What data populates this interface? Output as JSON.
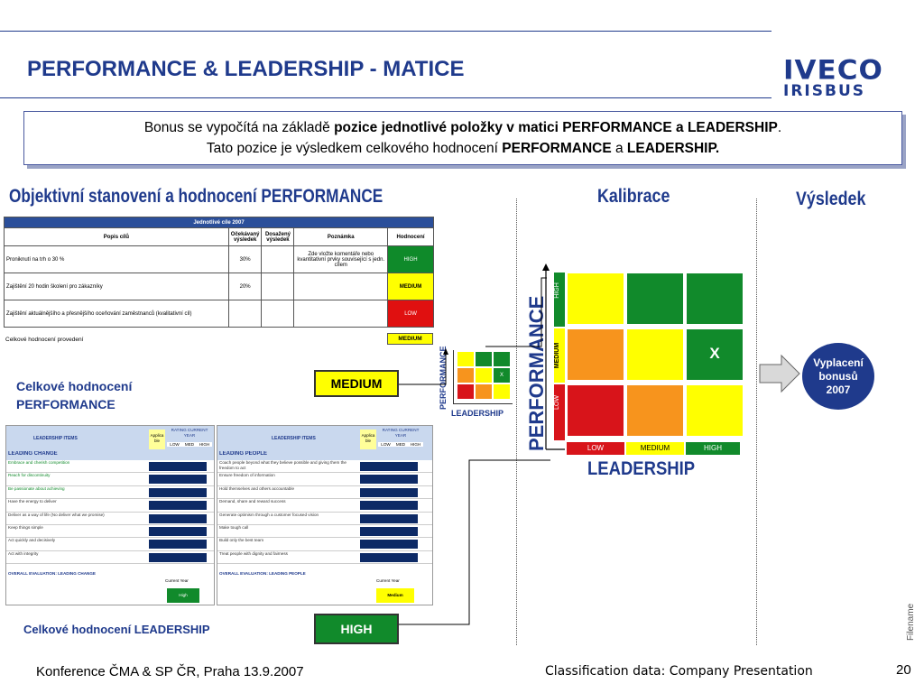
{
  "title": "PERFORMANCE & LEADERSHIP - MATICE",
  "logo": {
    "line1": "IVECO",
    "line2": "IRISBUS"
  },
  "info": {
    "line1_pre": "Bonus se vypočítá na základě ",
    "line1_bold": "pozice jednotlivé položky v matici PERFORMANCE a LEADERSHIP",
    "line1_post": ".",
    "line2_pre": "Tato pozice je výsledkem celkového hodnocení ",
    "line2_bold1": "PERFORMANCE",
    "line2_mid": " a ",
    "line2_bold2": "LEADERSHIP."
  },
  "headings": {
    "objective": "Objektivní stanovení a hodnocení PERFORMANCE",
    "calibration": "Kalibrace",
    "result": "Výsledek"
  },
  "goals_table": {
    "caption": "Jednotlivé cíle 2007",
    "columns": [
      "Popis cílů",
      "Očekávaný výsledek",
      "Dosažený výsledek",
      "Poznámka",
      "Hodnocení"
    ],
    "rows": [
      {
        "desc": "Proniknutí na trh o 30 %",
        "expected": "30%",
        "achieved": "",
        "note": "Zde vložte komentáře nebo kvantitativní prvky související s jedn. cílem",
        "rating": "HIGH"
      },
      {
        "desc": "Zajištění 20 hodin školení pro zákazníky",
        "expected": "20%",
        "achieved": "",
        "note": "",
        "rating": "MEDIUM"
      },
      {
        "desc": "Zajištění aktuálnějšího a přesnějšího oceňování zaměstnanců (kvalitativní cíl)",
        "expected": "",
        "achieved": "",
        "note": "",
        "rating": "LOW"
      }
    ],
    "overall_label": "Celkové hodnocení provedení",
    "overall_rating": "MEDIUM"
  },
  "performance_overall": {
    "label": "Celkové hodnocení PERFORMANCE",
    "value": "MEDIUM"
  },
  "leadership_overall": {
    "label": "Celkové hodnocení LEADERSHIP",
    "value": "HIGH"
  },
  "small_matrix": {
    "y_label": "PERFORMANCE",
    "x_label": "LEADERSHIP",
    "mark": "X"
  },
  "matrix": {
    "y_label": "PERFORMANCE",
    "x_label": "LEADERSHIP",
    "y_levels": [
      "HIGH",
      "MEDIUM",
      "LOW"
    ],
    "x_levels": [
      "LOW",
      "MEDIUM",
      "HIGH"
    ],
    "mark": "X",
    "colors": {
      "green": "#118a2b",
      "yellow": "#ffff00",
      "orange": "#f7941d",
      "red": "#d8141a"
    }
  },
  "result_box": {
    "text": "Vyplacení bonusů 2007"
  },
  "leadership_forms": [
    {
      "header": "LEADERSHIP ITEMS",
      "applicable": "Applica ble",
      "rating_title": "RATING CURRENT YEAR",
      "levels": [
        "LOW",
        "MED",
        "HIGH"
      ],
      "section": "LEADING CHANGE",
      "items": [
        "Embrace and cherish competition",
        "Reach for discontinuity",
        "Be passionate about achieving",
        "Have the energy to deliver",
        "Deliver as a way of life (No deliver what we promise)",
        "Keep things simple",
        "Act quickly and decisively",
        "Act with integrity"
      ],
      "overall": "OVERALL EVALUATION: LEADING CHANGE",
      "current": "Current Year",
      "result": "High"
    },
    {
      "header": "LEADERSHIP ITEMS",
      "applicable": "Applica ble",
      "rating_title": "RATING CURRENT YEAR",
      "levels": [
        "LOW",
        "MED",
        "HIGH"
      ],
      "section": "LEADING PEOPLE",
      "items": [
        "Coach people beyond what they believe possible and giving them the freedom to act",
        "Ensure freedom of information",
        "Hold themselves and others accountable",
        "Demand, share and reward success",
        "Generate optimism through a customer focused vision",
        "Make tough call",
        "Build only the best team",
        "Treat people with dignity and fairness"
      ],
      "overall": "OVERALL EVALUATION: LEADING PEOPLE",
      "current": "Current Year",
      "result": "Medium"
    }
  ],
  "side_label": "Filename",
  "footer": {
    "left": "Konference ČMA & SP ČR, Praha 13.9.2007",
    "center": "Classification data: Company Presentation",
    "page": "20"
  }
}
